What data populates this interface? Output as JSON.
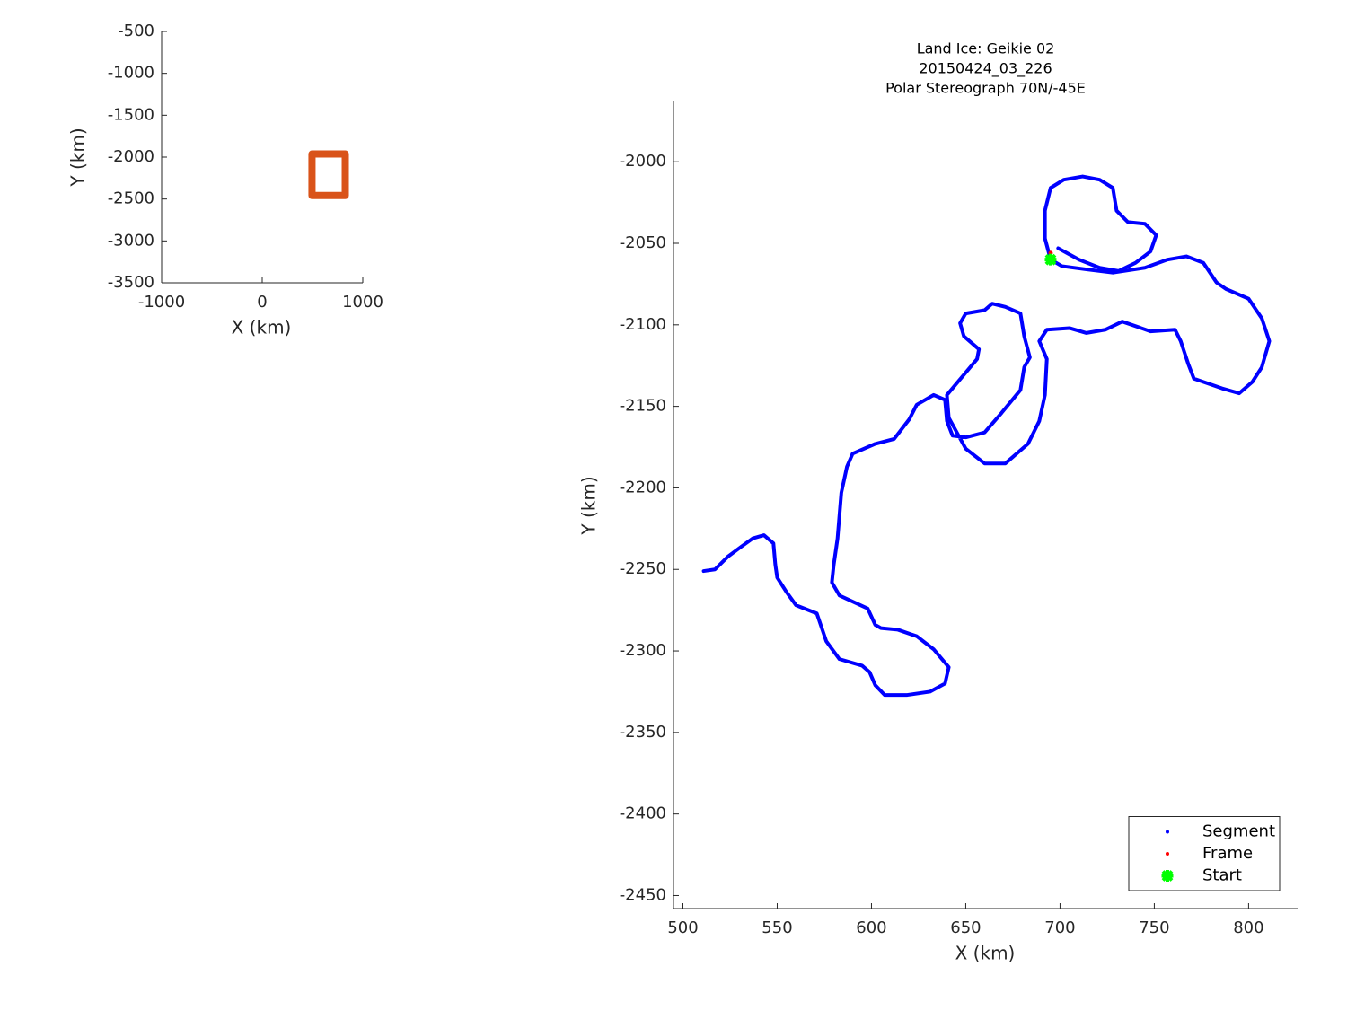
{
  "chart_data": [
    {
      "type": "line",
      "xlabel": "X (km)",
      "ylabel": "Y (km)",
      "xlim": [
        -1000,
        1000
      ],
      "ylim": [
        -3500,
        -500
      ],
      "xticks": [
        -1000,
        0,
        1000
      ],
      "yticks": [
        -3500,
        -3000,
        -2500,
        -2000,
        -1500,
        -1000,
        -500
      ],
      "series": [
        {
          "color": "#d95319",
          "x": [
            495,
            826,
            826,
            495,
            495
          ],
          "y": [
            -1963,
            -1963,
            -2458,
            -2458,
            -1963
          ]
        }
      ]
    },
    {
      "type": "scatter",
      "title": [
        "Land Ice: Geikie 02",
        "20150424_03_226",
        "Polar Stereograph 70N/-45E"
      ],
      "xlabel": "X (km)",
      "ylabel": "Y (km)",
      "xlim": [
        495,
        826
      ],
      "ylim": [
        -2458,
        -1963
      ],
      "xticks": [
        500,
        550,
        600,
        650,
        700,
        750,
        800
      ],
      "yticks": [
        -2450,
        -2400,
        -2350,
        -2300,
        -2250,
        -2200,
        -2150,
        -2100,
        -2050,
        -2000
      ],
      "legend": "lower right",
      "series": [
        {
          "name": "Segment",
          "color": "#0000ff",
          "marker": "dot",
          "x": [
            699,
            710,
            721,
            731,
            740,
            748,
            751,
            745,
            736,
            730,
            728,
            721,
            712,
            702,
            695,
            692,
            692,
            695,
            701,
            714,
            728,
            745,
            757,
            767,
            776,
            783,
            788,
            800,
            807,
            811,
            807,
            802,
            795,
            786,
            771,
            768,
            764,
            761,
            748,
            733,
            724,
            714,
            705,
            693,
            689,
            693,
            692,
            689,
            683,
            671,
            660,
            650,
            641,
            640,
            648,
            656,
            657,
            649,
            647,
            650,
            660,
            664,
            671,
            679,
            681,
            684,
            681,
            679,
            669,
            660,
            650,
            643,
            640,
            639,
            633,
            624,
            620,
            612,
            602,
            590,
            587,
            584,
            582,
            580,
            579,
            583,
            598,
            602,
            605,
            614,
            624,
            633,
            641,
            639,
            631,
            619,
            607,
            602,
            599,
            595,
            583,
            576,
            571,
            560,
            555,
            550,
            549,
            548,
            543,
            537,
            531,
            524,
            517,
            511
          ],
          "y": [
            -2053,
            -2060,
            -2065,
            -2067,
            -2062,
            -2055,
            -2045,
            -2038,
            -2037,
            -2030,
            -2016,
            -2011,
            -2009,
            -2011,
            -2016,
            -2030,
            -2047,
            -2060,
            -2064,
            -2066,
            -2068,
            -2065,
            -2060,
            -2058,
            -2062,
            -2074,
            -2078,
            -2084,
            -2096,
            -2110,
            -2126,
            -2135,
            -2142,
            -2139,
            -2133,
            -2124,
            -2110,
            -2103,
            -2104,
            -2098,
            -2103,
            -2105,
            -2102,
            -2103,
            -2110,
            -2121,
            -2143,
            -2159,
            -2173,
            -2185,
            -2185,
            -2176,
            -2157,
            -2143,
            -2132,
            -2121,
            -2115,
            -2107,
            -2099,
            -2093,
            -2091,
            -2087,
            -2089,
            -2093,
            -2107,
            -2120,
            -2126,
            -2140,
            -2154,
            -2166,
            -2169,
            -2168,
            -2159,
            -2146,
            -2143,
            -2149,
            -2158,
            -2170,
            -2173,
            -2179,
            -2187,
            -2203,
            -2231,
            -2247,
            -2258,
            -2266,
            -2274,
            -2284,
            -2286,
            -2287,
            -2291,
            -2299,
            -2310,
            -2320,
            -2325,
            -2327,
            -2327,
            -2321,
            -2313,
            -2309,
            -2305,
            -2294,
            -2277,
            -2272,
            -2264,
            -2255,
            -2247,
            -2234,
            -2229,
            -2231,
            -2236,
            -2242,
            -2250,
            -2251
          ]
        },
        {
          "name": "Frame",
          "color": "#ff0000",
          "marker": "dot",
          "x": [
            695
          ],
          "y": [
            -2056
          ]
        },
        {
          "name": "Start",
          "color": "#00ff00",
          "marker": "x",
          "x": [
            695
          ],
          "y": [
            -2060
          ]
        }
      ]
    }
  ]
}
